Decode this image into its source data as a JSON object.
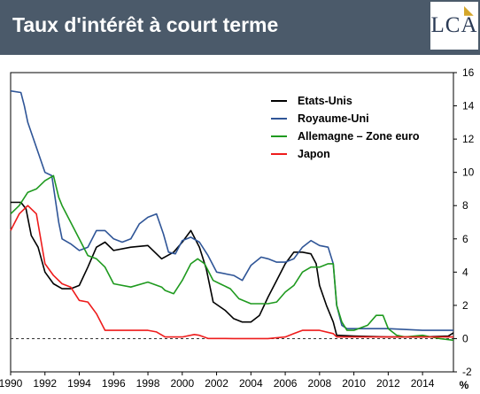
{
  "header": {
    "title": "Taux d'intérêt à court terme",
    "logo": "LCA"
  },
  "colors": {
    "header_bg": "#4b5a6a",
    "us": "#000000",
    "uk": "#2f5597",
    "de": "#1f9a1f",
    "jp": "#ee1c1c"
  },
  "chart_data": {
    "type": "line",
    "title": "Taux d'intérêt à court terme",
    "unit_label": "%",
    "xlim": [
      1990,
      2015.8
    ],
    "ylim": [
      -2,
      16
    ],
    "x_ticks": [
      "1990",
      "1992",
      "1994",
      "1996",
      "1998",
      "2000",
      "2002",
      "2004",
      "2006",
      "2008",
      "2010",
      "2012",
      "2014"
    ],
    "y_ticks": [
      "-2",
      "0",
      "2",
      "4",
      "6",
      "8",
      "10",
      "12",
      "14",
      "16"
    ],
    "y_axis_position": "right",
    "zero_line": "dashed",
    "legend_position": "top-right",
    "series": [
      {
        "name": "Etats-Unis",
        "color": "#000000",
        "points": [
          [
            1990,
            8.2
          ],
          [
            1990.6,
            8.2
          ],
          [
            1990.9,
            7.8
          ],
          [
            1991.2,
            6.2
          ],
          [
            1991.6,
            5.5
          ],
          [
            1992,
            4
          ],
          [
            1992.5,
            3.3
          ],
          [
            1993,
            3
          ],
          [
            1993.5,
            3
          ],
          [
            1994,
            3.2
          ],
          [
            1994.5,
            4.3
          ],
          [
            1995,
            5.5
          ],
          [
            1995.5,
            5.8
          ],
          [
            1996,
            5.3
          ],
          [
            1997,
            5.5
          ],
          [
            1998,
            5.6
          ],
          [
            1998.8,
            4.8
          ],
          [
            1999.5,
            5.2
          ],
          [
            2000,
            5.8
          ],
          [
            2000.5,
            6.5
          ],
          [
            2001,
            5.5
          ],
          [
            2001.4,
            4.2
          ],
          [
            2001.8,
            2.2
          ],
          [
            2002.5,
            1.7
          ],
          [
            2003,
            1.2
          ],
          [
            2003.5,
            1
          ],
          [
            2004,
            1
          ],
          [
            2004.5,
            1.4
          ],
          [
            2005,
            2.5
          ],
          [
            2005.5,
            3.5
          ],
          [
            2006,
            4.5
          ],
          [
            2006.5,
            5.2
          ],
          [
            2007,
            5.2
          ],
          [
            2007.5,
            5.1
          ],
          [
            2007.8,
            4.5
          ],
          [
            2008,
            3.2
          ],
          [
            2008.4,
            2
          ],
          [
            2008.8,
            1
          ],
          [
            2009,
            0.2
          ],
          [
            2010,
            0.15
          ],
          [
            2012,
            0.1
          ],
          [
            2014,
            0.1
          ],
          [
            2015.5,
            0.15
          ],
          [
            2015.8,
            0.35
          ]
        ]
      },
      {
        "name": "Royaume-Uni",
        "color": "#2f5597",
        "points": [
          [
            1990,
            14.9
          ],
          [
            1990.6,
            14.8
          ],
          [
            1990.8,
            14
          ],
          [
            1991,
            13
          ],
          [
            1991.5,
            11.5
          ],
          [
            1992,
            10
          ],
          [
            1992.4,
            9.8
          ],
          [
            1992.8,
            7
          ],
          [
            1993,
            6
          ],
          [
            1993.5,
            5.7
          ],
          [
            1994,
            5.3
          ],
          [
            1994.5,
            5.5
          ],
          [
            1995,
            6.5
          ],
          [
            1995.5,
            6.5
          ],
          [
            1996,
            6
          ],
          [
            1996.5,
            5.8
          ],
          [
            1997,
            6
          ],
          [
            1997.5,
            6.9
          ],
          [
            1998,
            7.3
          ],
          [
            1998.5,
            7.5
          ],
          [
            1998.9,
            6.3
          ],
          [
            1999.2,
            5.2
          ],
          [
            1999.6,
            5.1
          ],
          [
            2000,
            5.9
          ],
          [
            2000.5,
            6.1
          ],
          [
            2001,
            5.8
          ],
          [
            2001.5,
            5
          ],
          [
            2002,
            4
          ],
          [
            2003,
            3.8
          ],
          [
            2003.5,
            3.5
          ],
          [
            2004,
            4.4
          ],
          [
            2004.6,
            4.9
          ],
          [
            2005,
            4.8
          ],
          [
            2005.5,
            4.6
          ],
          [
            2006,
            4.6
          ],
          [
            2006.5,
            4.8
          ],
          [
            2007,
            5.5
          ],
          [
            2007.5,
            5.9
          ],
          [
            2008,
            5.6
          ],
          [
            2008.5,
            5.5
          ],
          [
            2008.8,
            4.5
          ],
          [
            2009,
            2
          ],
          [
            2009.3,
            0.8
          ],
          [
            2009.6,
            0.6
          ],
          [
            2010,
            0.6
          ],
          [
            2012,
            0.6
          ],
          [
            2014,
            0.5
          ],
          [
            2015.8,
            0.5
          ]
        ]
      },
      {
        "name": "Allemagne – Zone euro",
        "color": "#1f9a1f",
        "points": [
          [
            1990,
            7.5
          ],
          [
            1990.5,
            8
          ],
          [
            1991,
            8.8
          ],
          [
            1991.5,
            9
          ],
          [
            1992,
            9.5
          ],
          [
            1992.5,
            9.8
          ],
          [
            1992.8,
            8.5
          ],
          [
            1993,
            8
          ],
          [
            1993.5,
            7
          ],
          [
            1994,
            6
          ],
          [
            1994.5,
            5
          ],
          [
            1995,
            4.8
          ],
          [
            1995.5,
            4.3
          ],
          [
            1996,
            3.3
          ],
          [
            1997,
            3.1
          ],
          [
            1998,
            3.4
          ],
          [
            1998.8,
            3.1
          ],
          [
            1999,
            2.9
          ],
          [
            1999.5,
            2.7
          ],
          [
            2000,
            3.5
          ],
          [
            2000.5,
            4.5
          ],
          [
            2000.9,
            4.8
          ],
          [
            2001.3,
            4.5
          ],
          [
            2001.8,
            3.5
          ],
          [
            2002.2,
            3.3
          ],
          [
            2002.8,
            3
          ],
          [
            2003.3,
            2.4
          ],
          [
            2004,
            2.1
          ],
          [
            2005,
            2.1
          ],
          [
            2005.5,
            2.2
          ],
          [
            2006,
            2.8
          ],
          [
            2006.5,
            3.2
          ],
          [
            2007,
            4
          ],
          [
            2007.5,
            4.3
          ],
          [
            2008,
            4.3
          ],
          [
            2008.5,
            4.5
          ],
          [
            2008.8,
            4.5
          ],
          [
            2009,
            2
          ],
          [
            2009.3,
            1
          ],
          [
            2009.6,
            0.5
          ],
          [
            2010,
            0.5
          ],
          [
            2010.8,
            0.8
          ],
          [
            2011.3,
            1.4
          ],
          [
            2011.7,
            1.4
          ],
          [
            2012,
            0.6
          ],
          [
            2012.5,
            0.2
          ],
          [
            2013,
            0.1
          ],
          [
            2014,
            0.2
          ],
          [
            2015,
            0
          ],
          [
            2015.8,
            -0.1
          ]
        ]
      },
      {
        "name": "Japon",
        "color": "#ee1c1c",
        "points": [
          [
            1990,
            6.5
          ],
          [
            1990.5,
            7.5
          ],
          [
            1991,
            8
          ],
          [
            1991.5,
            7.5
          ],
          [
            1992,
            4.5
          ],
          [
            1992.5,
            3.8
          ],
          [
            1993,
            3.3
          ],
          [
            1993.5,
            3.1
          ],
          [
            1994,
            2.3
          ],
          [
            1994.5,
            2.2
          ],
          [
            1995,
            1.5
          ],
          [
            1995.5,
            0.5
          ],
          [
            1996,
            0.5
          ],
          [
            1997,
            0.5
          ],
          [
            1998,
            0.5
          ],
          [
            1998.5,
            0.4
          ],
          [
            1999,
            0.1
          ],
          [
            2000,
            0.1
          ],
          [
            2000.7,
            0.25
          ],
          [
            2001,
            0.2
          ],
          [
            2001.5,
            0.01
          ],
          [
            2002,
            0.01
          ],
          [
            2003,
            0
          ],
          [
            2004,
            0
          ],
          [
            2005,
            0
          ],
          [
            2006,
            0.1
          ],
          [
            2006.5,
            0.3
          ],
          [
            2007,
            0.5
          ],
          [
            2008,
            0.5
          ],
          [
            2008.8,
            0.3
          ],
          [
            2009,
            0.1
          ],
          [
            2010,
            0.1
          ],
          [
            2012,
            0.1
          ],
          [
            2014,
            0.1
          ],
          [
            2015.8,
            0.1
          ]
        ]
      }
    ]
  }
}
